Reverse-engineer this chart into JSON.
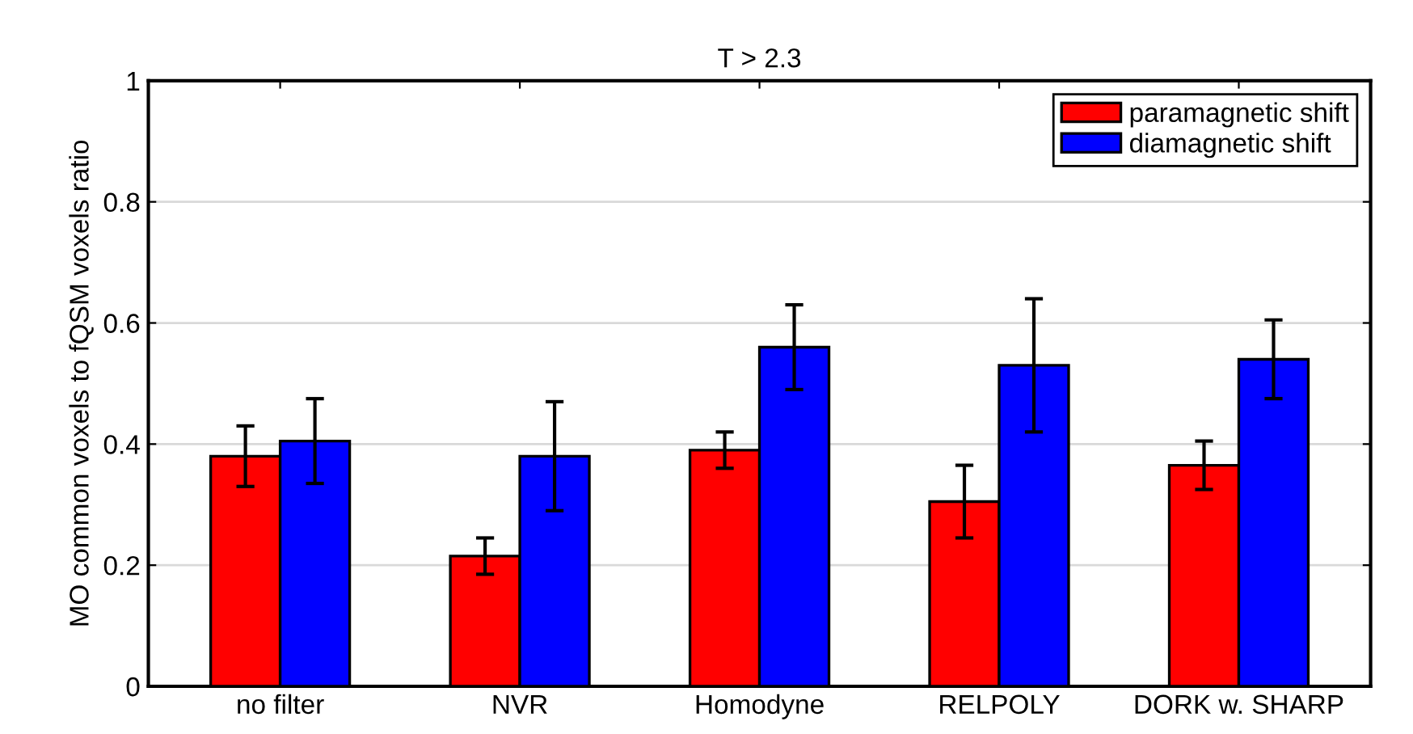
{
  "chart_data": {
    "type": "bar",
    "title": "T > 2.3",
    "ylabel": "MO common voxels to fQSM voxels ratio",
    "categories": [
      "no filter",
      "NVR",
      "Homodyne",
      "RELPOLY",
      "DORK w. SHARP"
    ],
    "series": [
      {
        "name": "paramagnetic shift",
        "color": "#ff0000",
        "values": [
          0.38,
          0.215,
          0.39,
          0.305,
          0.365
        ],
        "errors": [
          0.05,
          0.03,
          0.03,
          0.06,
          0.04
        ]
      },
      {
        "name": "diamagnetic shift",
        "color": "#0000ff",
        "values": [
          0.405,
          0.38,
          0.56,
          0.53,
          0.54
        ],
        "errors": [
          0.07,
          0.09,
          0.07,
          0.11,
          0.065
        ]
      }
    ],
    "ylim": [
      0,
      1
    ],
    "yticks": [
      0,
      0.2,
      0.4,
      0.6,
      0.8,
      1
    ],
    "grid": "y",
    "legend": "top right"
  }
}
